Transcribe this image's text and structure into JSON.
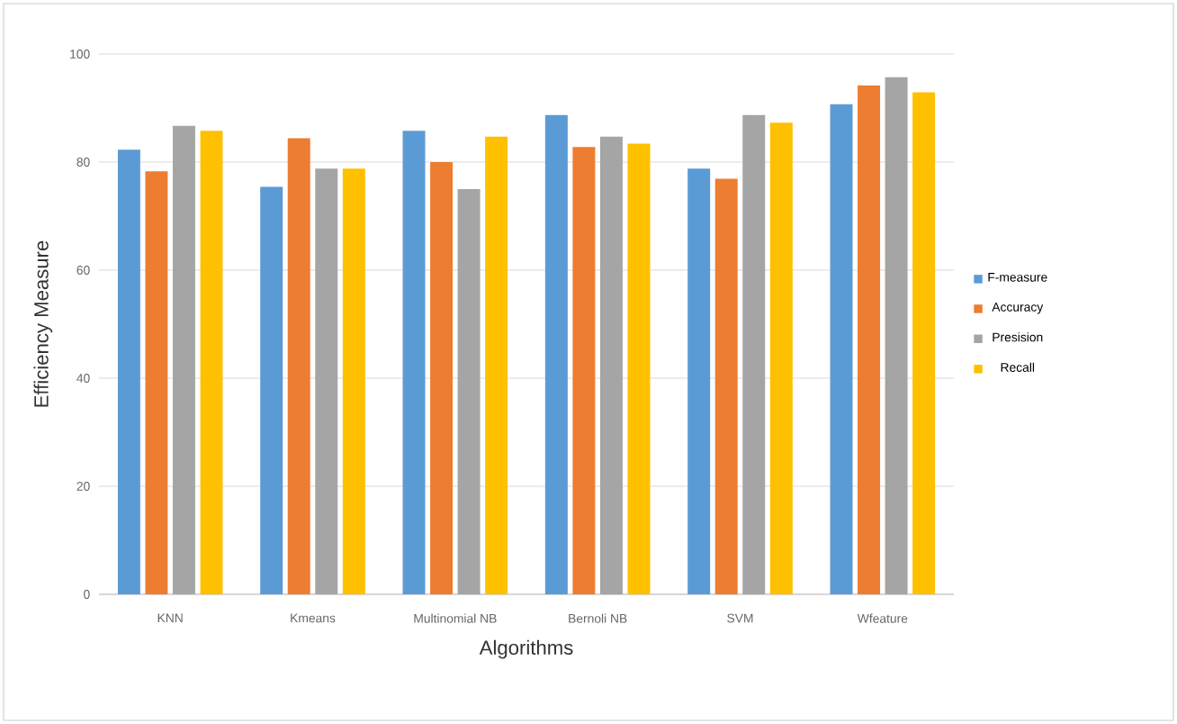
{
  "chart_data": {
    "type": "bar",
    "xlabel": "Algorithms",
    "ylabel": "Efficiency Measure",
    "categories": [
      "KNN",
      "Kmeans",
      "Multinomial NB",
      "Bernoli NB",
      "SVM",
      "Wfeature"
    ],
    "series": [
      {
        "name": "F-measure",
        "color": "#5b9bd5",
        "values": [
          82.3,
          75.4,
          85.8,
          88.7,
          78.8,
          90.7
        ]
      },
      {
        "name": "Accuracy",
        "color": "#ed7d31",
        "values": [
          78.3,
          84.4,
          80.0,
          82.8,
          76.9,
          94.2
        ]
      },
      {
        "name": "Presision",
        "color": "#a5a5a5",
        "values": [
          86.7,
          78.8,
          75,
          84.7,
          88.7,
          95.7
        ]
      },
      {
        "name": "Recall",
        "color": "#ffc000",
        "values": [
          85.8,
          78.8,
          84.7,
          83.4,
          87.3,
          92.9
        ]
      }
    ],
    "ylim": [
      0,
      100
    ],
    "yticks": [
      0,
      20,
      40,
      60,
      80,
      100
    ],
    "grid": "y",
    "legend": "right"
  }
}
